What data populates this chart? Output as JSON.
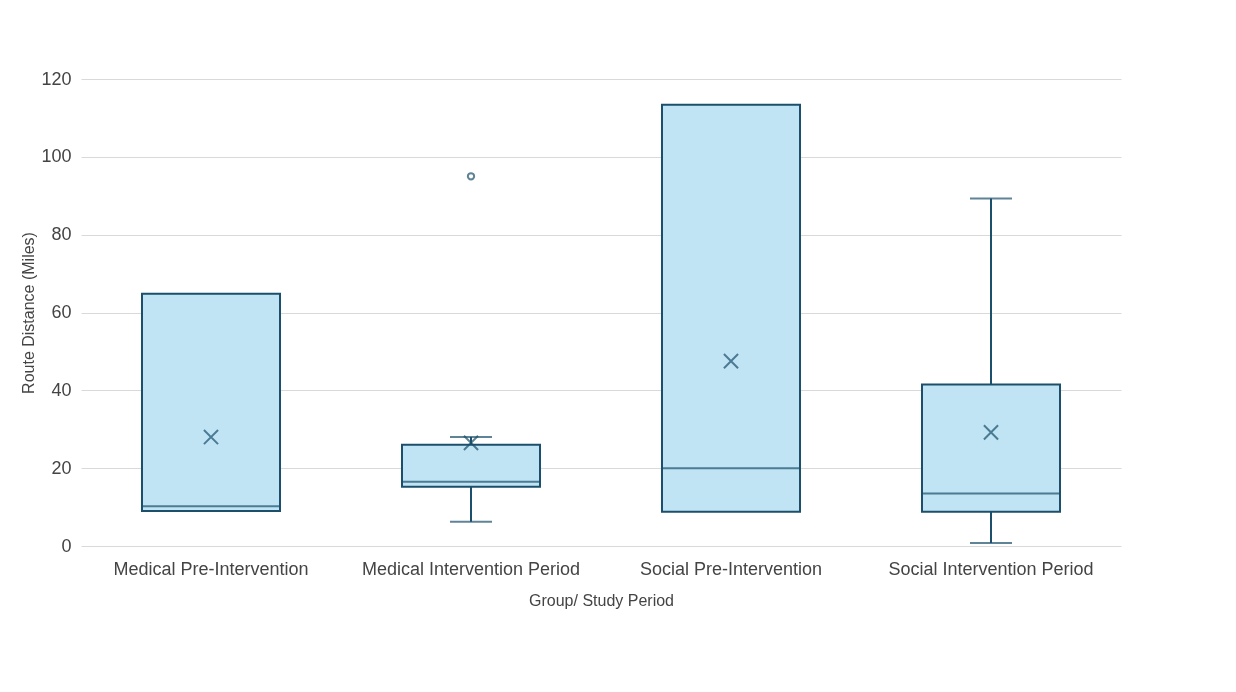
{
  "chart_data": {
    "type": "box",
    "xlabel": "Group/ Study Period",
    "ylabel": "Route Distance (Miles)",
    "categories": [
      "Medical Pre-Intervention",
      "Medical Intervention Period",
      "Social Pre-Intervention",
      "Social Intervention Period"
    ],
    "color": "#c0e4f4",
    "boxes": [
      {
        "low": 9,
        "q1": 9,
        "median": 10.2,
        "q3": 64.8,
        "high": 64.8,
        "mean": 28
      },
      {
        "low": 6.2,
        "q1": 15.2,
        "median": 16.5,
        "q3": 26,
        "high": 28,
        "mean": 26.5,
        "outliers": [
          95
        ]
      },
      {
        "low": 8.8,
        "q1": 8.8,
        "median": 20,
        "q3": 113.4,
        "high": 113.4,
        "mean": 47.5
      },
      {
        "low": 0.8,
        "q1": 8.8,
        "median": 13.5,
        "q3": 41.5,
        "high": 89.3,
        "mean": 29.2
      }
    ],
    "ylim": [
      0,
      120
    ],
    "yticks": [
      0,
      20,
      40,
      60,
      80,
      100,
      120
    ],
    "grid": "y"
  }
}
